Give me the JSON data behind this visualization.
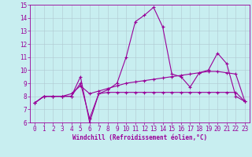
{
  "xlabel": "Windchill (Refroidissement éolien,°C)",
  "background_color": "#c8eef0",
  "line_color": "#990099",
  "grid_color": "#b0c8d0",
  "xlim": [
    -0.5,
    23.5
  ],
  "ylim": [
    6,
    15
  ],
  "yticks": [
    6,
    7,
    8,
    9,
    10,
    11,
    12,
    13,
    14,
    15
  ],
  "xticks": [
    0,
    1,
    2,
    3,
    4,
    5,
    6,
    7,
    8,
    9,
    10,
    11,
    12,
    13,
    14,
    15,
    16,
    17,
    18,
    19,
    20,
    21,
    22,
    23
  ],
  "line1_x": [
    0,
    1,
    2,
    3,
    4,
    5,
    6,
    7,
    8,
    9,
    10,
    11,
    12,
    13,
    14,
    15,
    16,
    17,
    18,
    19,
    20,
    21,
    22,
    23
  ],
  "line1_y": [
    7.5,
    8.0,
    8.0,
    8.0,
    8.0,
    9.5,
    6.0,
    8.2,
    8.3,
    8.3,
    8.3,
    8.3,
    8.3,
    8.3,
    8.3,
    8.3,
    8.3,
    8.3,
    8.3,
    8.3,
    8.3,
    8.3,
    8.3,
    7.6
  ],
  "line2_x": [
    0,
    1,
    2,
    3,
    4,
    5,
    6,
    7,
    8,
    9,
    10,
    11,
    12,
    13,
    14,
    15,
    16,
    17,
    18,
    19,
    20,
    21,
    22,
    23
  ],
  "line2_y": [
    7.5,
    8.0,
    8.0,
    8.0,
    8.0,
    9.0,
    6.3,
    8.2,
    8.5,
    9.0,
    11.0,
    13.7,
    14.2,
    14.8,
    13.3,
    9.7,
    9.5,
    8.7,
    9.8,
    10.0,
    11.3,
    10.5,
    8.0,
    7.6
  ],
  "line3_x": [
    0,
    1,
    2,
    3,
    4,
    5,
    6,
    7,
    8,
    9,
    10,
    11,
    12,
    13,
    14,
    15,
    16,
    17,
    18,
    19,
    20,
    21,
    22,
    23
  ],
  "line3_y": [
    7.5,
    8.0,
    8.0,
    8.0,
    8.2,
    8.8,
    8.2,
    8.4,
    8.6,
    8.8,
    9.0,
    9.1,
    9.2,
    9.3,
    9.4,
    9.5,
    9.6,
    9.7,
    9.8,
    9.9,
    9.9,
    9.8,
    9.7,
    7.6
  ],
  "marker": "+",
  "markersize": 3,
  "linewidth": 0.8,
  "tick_fontsize": 5.5,
  "xlabel_fontsize": 5.5
}
